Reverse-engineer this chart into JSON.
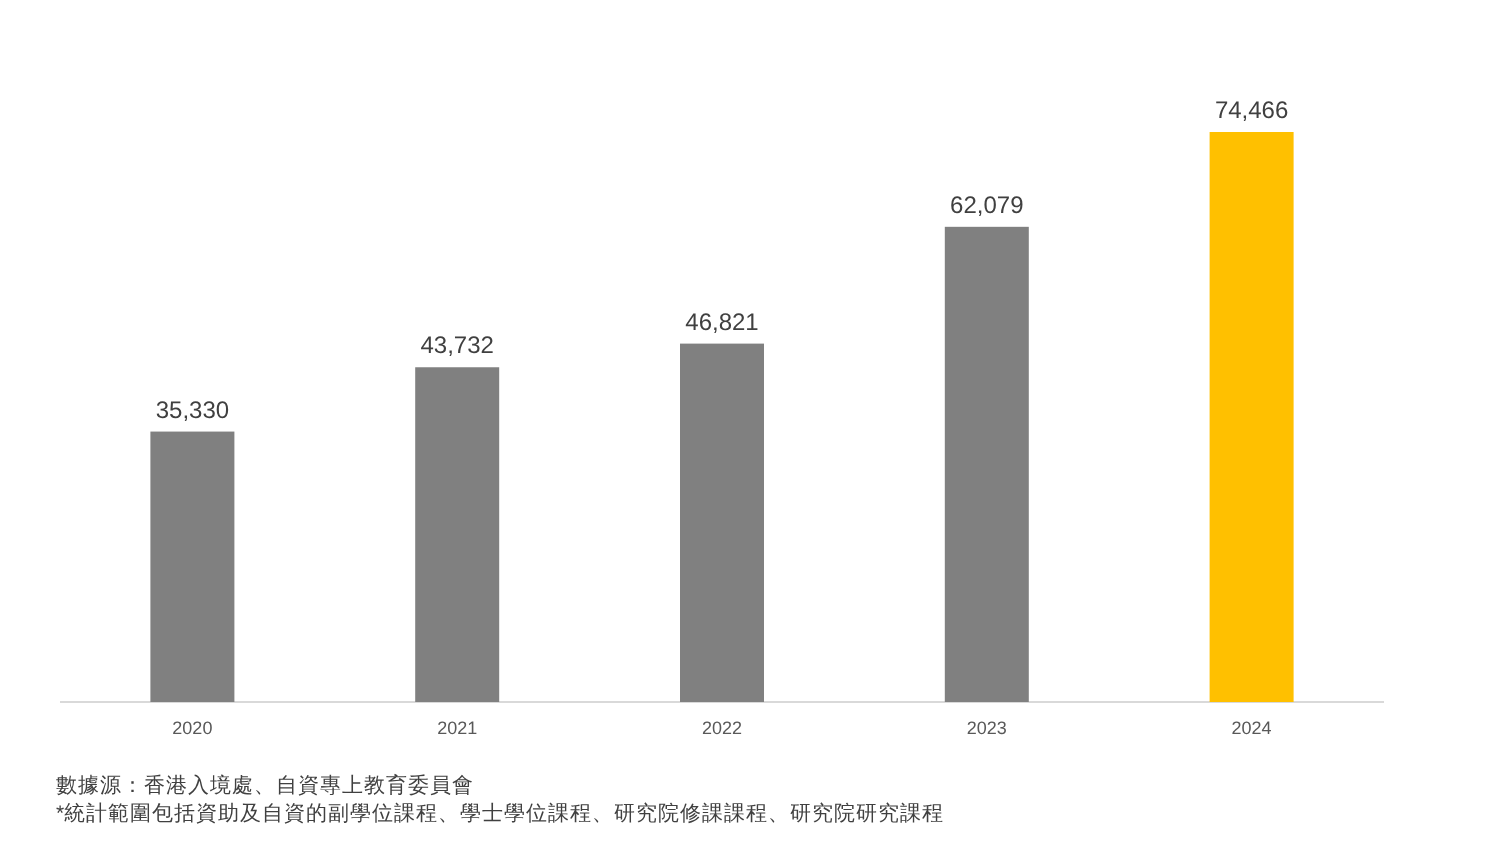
{
  "chart_data": {
    "type": "bar",
    "categories": [
      "2020",
      "2021",
      "2022",
      "2023",
      "2024"
    ],
    "values": [
      35330,
      43732,
      46821,
      62079,
      74466
    ],
    "colors": [
      "#808080",
      "#808080",
      "#808080",
      "#808080",
      "#ffc000"
    ],
    "value_labels": [
      "35,330",
      "43,732",
      "46,821",
      "62,079",
      "74,466"
    ],
    "annotations": [
      "數據源：香港入境處、自資專上教育委員會",
      "*統計範圍包括資助及自資的副學位課程、學士學位課程、研究院修課課程、研究院研究課程"
    ]
  }
}
